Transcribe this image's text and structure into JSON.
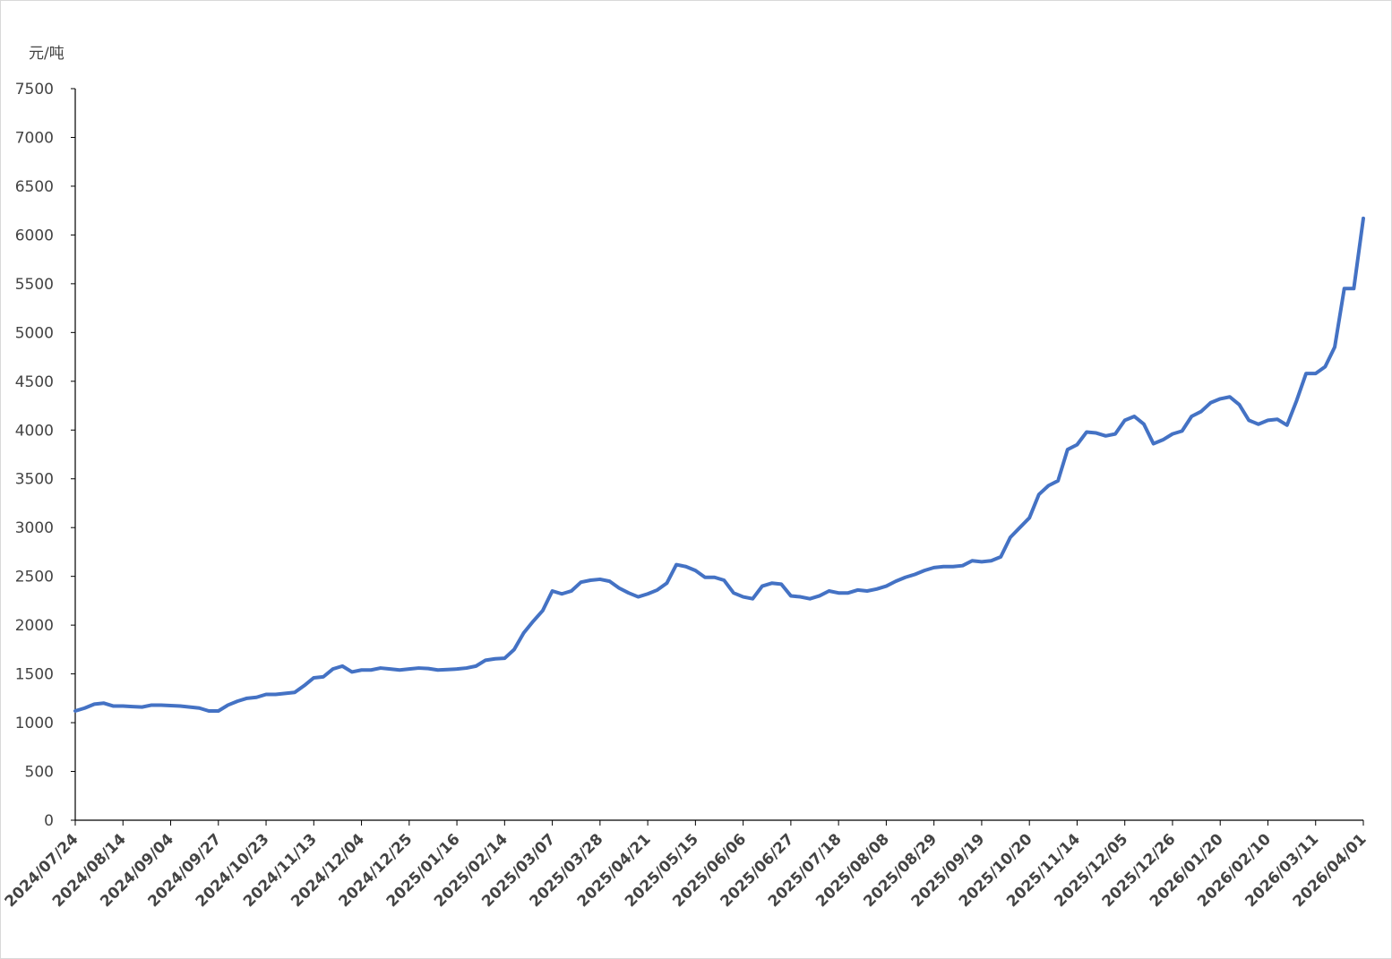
{
  "chart_data": {
    "type": "line",
    "y_label": "元/吨",
    "categories": [
      "2024/07/24",
      null,
      null,
      null,
      null,
      "2024/08/14",
      null,
      null,
      null,
      null,
      "2024/09/04",
      null,
      null,
      null,
      null,
      "2024/09/27",
      null,
      null,
      null,
      null,
      "2024/10/23",
      null,
      null,
      null,
      null,
      "2024/11/13",
      null,
      null,
      null,
      null,
      "2024/12/04",
      null,
      null,
      null,
      null,
      "2024/12/25",
      null,
      null,
      null,
      null,
      "2025/01/16",
      null,
      null,
      null,
      null,
      "2025/02/14",
      null,
      null,
      null,
      null,
      "2025/03/07",
      null,
      null,
      null,
      null,
      "2025/03/28",
      null,
      null,
      null,
      null,
      "2025/04/21",
      null,
      null,
      null,
      null,
      "2025/05/15",
      null,
      null,
      null,
      null,
      "2025/06/06",
      null,
      null,
      null,
      null,
      "2025/06/27",
      null,
      null,
      null,
      null,
      "2025/07/18",
      null,
      null,
      null,
      null,
      "2025/08/08",
      null,
      null,
      null,
      null,
      "2025/08/29",
      null,
      null,
      null,
      null,
      "2025/09/19",
      null,
      null,
      null,
      null,
      "2025/10/20",
      null,
      null,
      null,
      null,
      "2025/11/14",
      null,
      null,
      null,
      null,
      "2025/12/05",
      null,
      null,
      null,
      null,
      "2025/12/26",
      null,
      null,
      null,
      null,
      "2026/01/20",
      null,
      null,
      null,
      null,
      "2026/02/10",
      null,
      null,
      null,
      null,
      "2026/03/11",
      null,
      null,
      null,
      null,
      "2026/04/01"
    ],
    "series": [
      {
        "color": "#4472c4",
        "values": [
          1120,
          1150,
          1190,
          1200,
          1170,
          1170,
          1165,
          1160,
          1180,
          1180,
          1175,
          1170,
          1160,
          1150,
          1120,
          1120,
          1180,
          1220,
          1250,
          1260,
          1290,
          1290,
          1300,
          1310,
          1380,
          1460,
          1470,
          1550,
          1580,
          1520,
          1540,
          1540,
          1560,
          1550,
          1540,
          1550,
          1560,
          1555,
          1540,
          1545,
          1550,
          1560,
          1580,
          1640,
          1655,
          1660,
          1750,
          1920,
          2040,
          2150,
          2350,
          2320,
          2350,
          2440,
          2460,
          2470,
          2450,
          2380,
          2330,
          2290,
          2320,
          2360,
          2430,
          2620,
          2600,
          2560,
          2490,
          2490,
          2460,
          2330,
          2290,
          2270,
          2400,
          2430,
          2420,
          2300,
          2290,
          2270,
          2300,
          2350,
          2330,
          2330,
          2360,
          2350,
          2370,
          2400,
          2450,
          2490,
          2520,
          2560,
          2590,
          2600,
          2600,
          2610,
          2660,
          2650,
          2660,
          2700,
          2900,
          3000,
          3100,
          3340,
          3430,
          3480,
          3800,
          3850,
          3980,
          3970,
          3940,
          3960,
          4100,
          4140,
          4060,
          3860,
          3900,
          3960,
          3990,
          4140,
          4190,
          4280,
          4320,
          4340,
          4260,
          4100,
          4060,
          4100,
          4110,
          4050,
          4300,
          4580,
          4580,
          4650,
          4850,
          5450,
          5450,
          6170
        ]
      }
    ],
    "ylim": [
      0,
      7500
    ],
    "yticks": [
      0,
      500,
      1000,
      1500,
      2000,
      2500,
      3000,
      3500,
      4000,
      4500,
      5000,
      5500,
      6000,
      6500,
      7000,
      7500
    ],
    "grid": false
  }
}
